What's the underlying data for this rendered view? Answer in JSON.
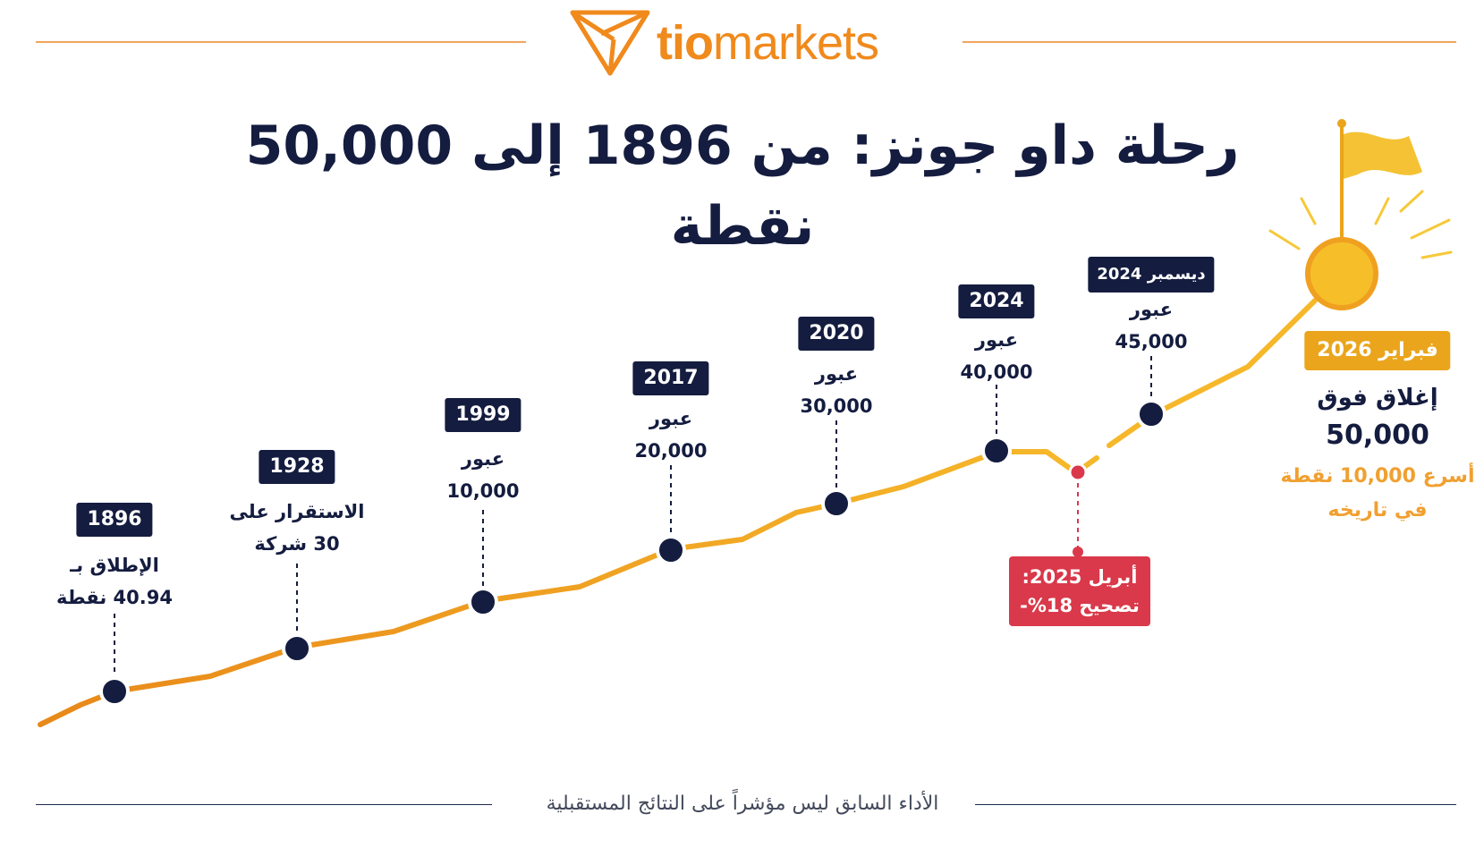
{
  "brand": {
    "name_bold": "tio",
    "name_regular": "markets",
    "color": "#f08a1c"
  },
  "title": "رحلة داو جونز: من 1896 إلى 50,000 نقطة",
  "footer": "الأداء السابق ليس مؤشراً على النتائج المستقبلية",
  "colors": {
    "navy": "#141c3f",
    "line": "#f0a020",
    "line_dark": "#e8891a",
    "correction": "#d9394a",
    "gold": "#eaa51c"
  },
  "chart_data": {
    "type": "line",
    "title": "رحلة داو جونز: من 1896 إلى 50,000 نقطة",
    "milestones": [
      {
        "year": "1896",
        "line1": "الإطلاق بـ",
        "line2": "40.94 نقطة"
      },
      {
        "year": "1928",
        "line1": "الاستقرار على",
        "line2": "30 شركة"
      },
      {
        "year": "1999",
        "line1": "عبور",
        "line2": "10,000"
      },
      {
        "year": "2017",
        "line1": "عبور",
        "line2": "20,000"
      },
      {
        "year": "2020",
        "line1": "عبور",
        "line2": "30,000"
      },
      {
        "year": "2024",
        "line1": "عبور",
        "line2": "40,000"
      },
      {
        "year": "ديسمبر 2024",
        "line1": "عبور",
        "line2": "45,000"
      }
    ],
    "correction": {
      "line1": "أبريل 2025:",
      "line2": "تصحيح 18%-"
    },
    "final": {
      "badge": "فبراير 2026",
      "line1": "إغلاق فوق",
      "line2": "50,000",
      "line3": "أسرع 10,000 نقطة",
      "line4": "في تاريخه"
    }
  }
}
